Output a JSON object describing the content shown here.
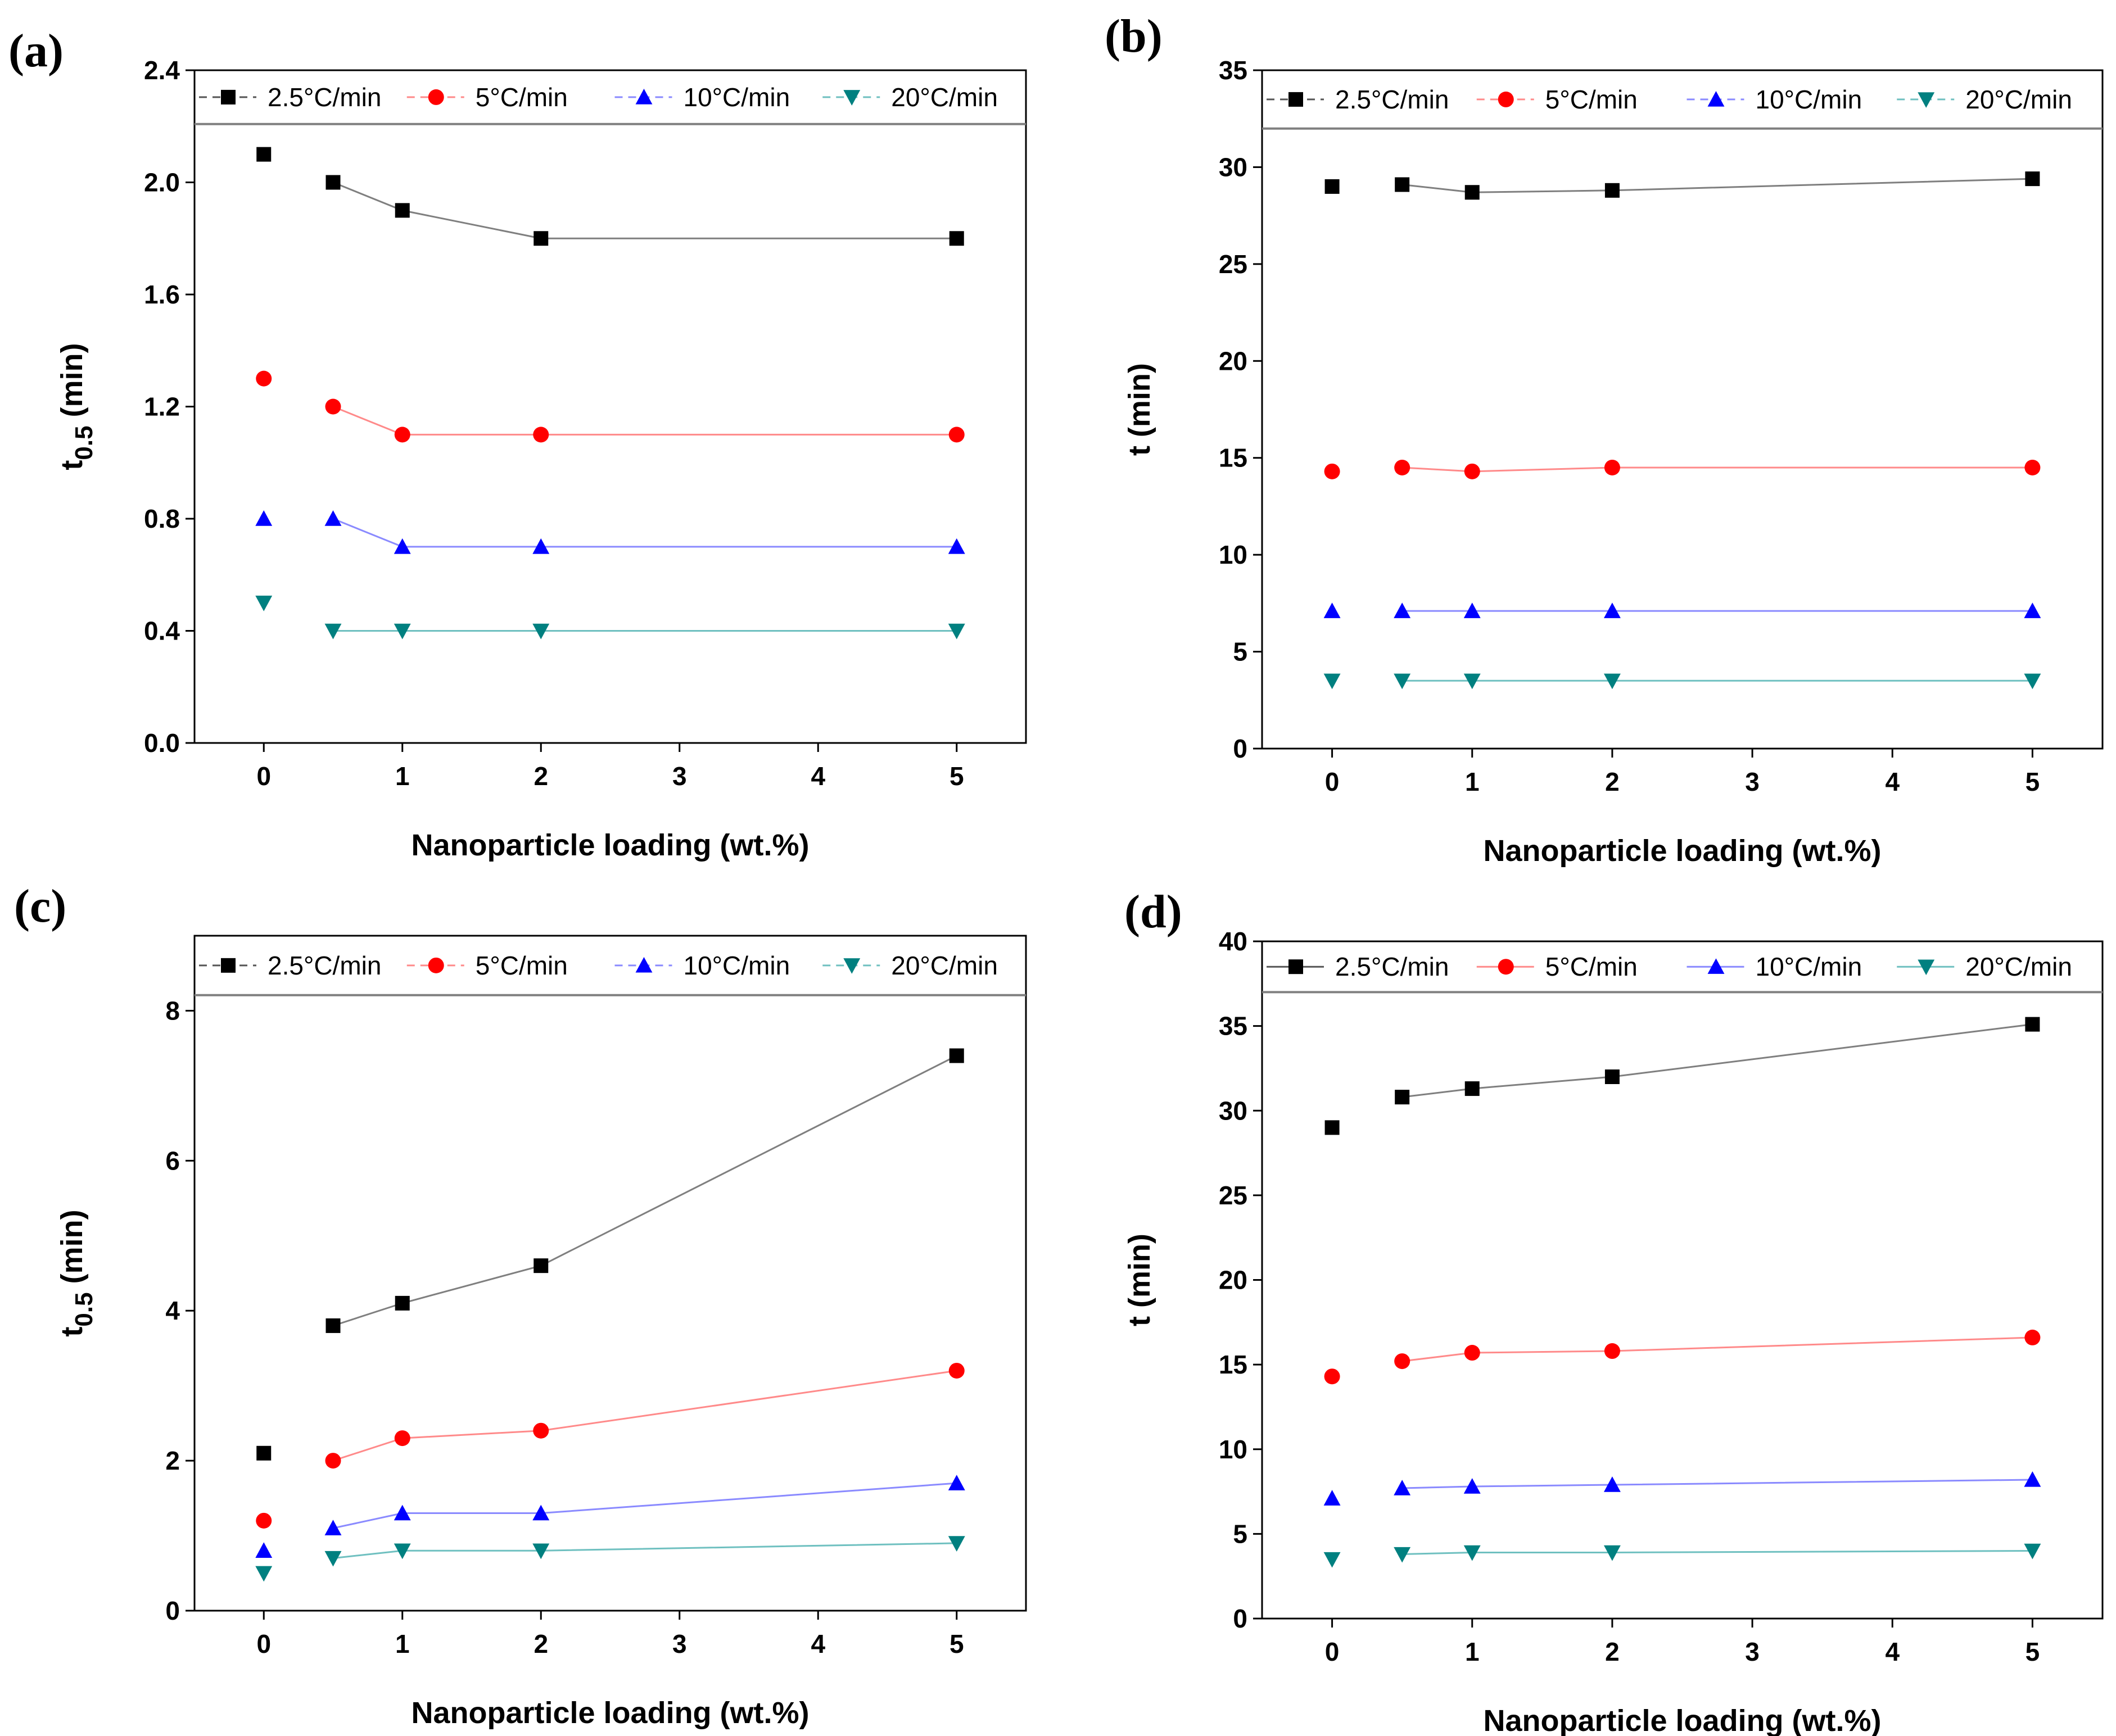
{
  "chart_data": [
    {
      "type": "scatter",
      "panel_label": "(a)",
      "title": "",
      "xlabel": "Nanoparticle loading (wt.%)",
      "ylabel_main": "t",
      "ylabel_sub": "0.5",
      "ylabel_unit": "(min)",
      "xlim": [
        -0.5,
        5.5
      ],
      "ylim": [
        0,
        2.4
      ],
      "xticks": [
        0,
        1,
        2,
        3,
        4,
        5
      ],
      "xtick_labels": [
        "0",
        "1",
        "2",
        "3",
        "4",
        "5"
      ],
      "yticks": [
        0,
        0.4,
        0.8,
        1.2,
        1.6,
        2.0,
        2.4
      ],
      "ytick_labels": [
        "0.0",
        "0.4",
        "0.8",
        "1.2",
        "1.6",
        "2.0",
        "2.4"
      ],
      "legend_line_ratio": 0.92,
      "legend_style": "dashed",
      "legend_position": "top",
      "x": [
        0,
        0.5,
        1,
        2,
        5
      ],
      "series": [
        {
          "name": "2.5°C/min",
          "marker": "square",
          "color": "#000000",
          "line_color": "#7f7f7f",
          "values": [
            2.1,
            2.0,
            1.9,
            1.8,
            1.8
          ]
        },
        {
          "name": "5°C/min",
          "marker": "circle",
          "color": "#ff0000",
          "line_color": "#ff8a8a",
          "values": [
            1.3,
            1.2,
            1.1,
            1.1,
            1.1
          ]
        },
        {
          "name": "10°C/min",
          "marker": "triangle-up",
          "color": "#0000ff",
          "line_color": "#8a8aff",
          "values": [
            0.8,
            0.8,
            0.7,
            0.7,
            0.7
          ]
        },
        {
          "name": "20°C/min",
          "marker": "triangle-down",
          "color": "#008080",
          "line_color": "#6fc0c0",
          "values": [
            0.5,
            0.4,
            0.4,
            0.4,
            0.4
          ]
        }
      ]
    },
    {
      "type": "scatter",
      "panel_label": "(b)",
      "title": "",
      "xlabel": "Nanoparticle loading (wt.%)",
      "ylabel_main": "t",
      "ylabel_sub": "",
      "ylabel_unit": "(min)",
      "xlim": [
        -0.5,
        5.5
      ],
      "ylim": [
        0,
        35
      ],
      "xticks": [
        0,
        1,
        2,
        3,
        4,
        5
      ],
      "xtick_labels": [
        "0",
        "1",
        "2",
        "3",
        "4",
        "5"
      ],
      "yticks": [
        0,
        5,
        10,
        15,
        20,
        25,
        30,
        35
      ],
      "ytick_labels": [
        "0",
        "5",
        "10",
        "15",
        "20",
        "25",
        "30",
        "35"
      ],
      "legend_line_ratio": 0.914,
      "legend_style": "dashed",
      "legend_position": "top",
      "x": [
        0,
        0.5,
        1,
        2,
        5
      ],
      "series": [
        {
          "name": "2.5°C/min",
          "marker": "square",
          "color": "#000000",
          "line_color": "#7f7f7f",
          "values": [
            29.0,
            29.1,
            28.7,
            28.8,
            29.4
          ]
        },
        {
          "name": "5°C/min",
          "marker": "circle",
          "color": "#ff0000",
          "line_color": "#ff8a8a",
          "values": [
            14.3,
            14.5,
            14.3,
            14.5,
            14.5
          ]
        },
        {
          "name": "10°C/min",
          "marker": "triangle-up",
          "color": "#0000ff",
          "line_color": "#8a8aff",
          "values": [
            7.1,
            7.1,
            7.1,
            7.1,
            7.1
          ]
        },
        {
          "name": "20°C/min",
          "marker": "triangle-down",
          "color": "#008080",
          "line_color": "#6fc0c0",
          "values": [
            3.5,
            3.5,
            3.5,
            3.5,
            3.5
          ]
        }
      ]
    },
    {
      "type": "scatter",
      "panel_label": "(c)",
      "title": "",
      "xlabel": "Nanoparticle loading (wt.%)",
      "ylabel_main": "t",
      "ylabel_sub": "0.5",
      "ylabel_unit": "(min)",
      "xlim": [
        -0.5,
        5.5
      ],
      "ylim": [
        0,
        9
      ],
      "xticks": [
        0,
        1,
        2,
        3,
        4,
        5
      ],
      "xtick_labels": [
        "0",
        "1",
        "2",
        "3",
        "4",
        "5"
      ],
      "yticks": [
        0,
        2,
        4,
        6,
        8
      ],
      "ytick_labels": [
        "0",
        "2",
        "4",
        "6",
        "8"
      ],
      "legend_line_ratio": 0.912,
      "legend_style": "dashed",
      "legend_position": "top",
      "x": [
        0,
        0.5,
        1,
        2,
        5
      ],
      "series": [
        {
          "name": "2.5°C/min",
          "marker": "square",
          "color": "#000000",
          "line_color": "#7f7f7f",
          "values": [
            2.1,
            3.8,
            4.1,
            4.6,
            7.4
          ]
        },
        {
          "name": "5°C/min",
          "marker": "circle",
          "color": "#ff0000",
          "line_color": "#ff8a8a",
          "values": [
            1.2,
            2.0,
            2.3,
            2.4,
            3.2
          ]
        },
        {
          "name": "10°C/min",
          "marker": "triangle-up",
          "color": "#0000ff",
          "line_color": "#8a8aff",
          "values": [
            0.8,
            1.1,
            1.3,
            1.3,
            1.7
          ]
        },
        {
          "name": "20°C/min",
          "marker": "triangle-down",
          "color": "#008080",
          "line_color": "#6fc0c0",
          "values": [
            0.5,
            0.7,
            0.8,
            0.8,
            0.9
          ]
        }
      ]
    },
    {
      "type": "scatter",
      "panel_label": "(d)",
      "title": "",
      "xlabel": "Nanoparticle loading (wt.%)",
      "ylabel_main": "t",
      "ylabel_sub": "",
      "ylabel_unit": "(min)",
      "xlim": [
        -0.5,
        5.5
      ],
      "ylim": [
        0,
        40
      ],
      "xticks": [
        0,
        1,
        2,
        3,
        4,
        5
      ],
      "xtick_labels": [
        "0",
        "1",
        "2",
        "3",
        "4",
        "5"
      ],
      "yticks": [
        0,
        5,
        10,
        15,
        20,
        25,
        30,
        35,
        40
      ],
      "ytick_labels": [
        "0",
        "5",
        "10",
        "15",
        "20",
        "25",
        "30",
        "35",
        "40"
      ],
      "legend_line_ratio": 0.925,
      "legend_style": "solid",
      "legend_position": "top",
      "x": [
        0,
        0.5,
        1,
        2,
        5
      ],
      "series": [
        {
          "name": "2.5°C/min",
          "marker": "square",
          "color": "#000000",
          "line_color": "#7f7f7f",
          "values": [
            29.0,
            30.8,
            31.3,
            32.0,
            35.1
          ]
        },
        {
          "name": "5°C/min",
          "marker": "circle",
          "color": "#ff0000",
          "line_color": "#ff8a8a",
          "values": [
            14.3,
            15.2,
            15.7,
            15.8,
            16.6
          ]
        },
        {
          "name": "10°C/min",
          "marker": "triangle-up",
          "color": "#0000ff",
          "line_color": "#8a8aff",
          "values": [
            7.1,
            7.7,
            7.8,
            7.9,
            8.2
          ]
        },
        {
          "name": "20°C/min",
          "marker": "triangle-down",
          "color": "#008080",
          "line_color": "#6fc0c0",
          "values": [
            3.5,
            3.8,
            3.9,
            3.9,
            4.0
          ]
        }
      ]
    }
  ]
}
